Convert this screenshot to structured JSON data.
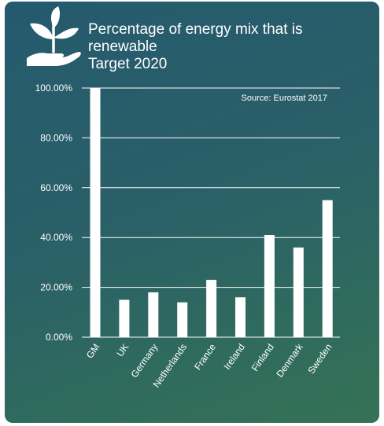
{
  "header": {
    "logo_icon": "plant-in-hand-icon"
  },
  "chart_data": {
    "type": "bar",
    "title_lines": [
      "Percentage of energy mix that is",
      "renewable",
      "Target 2020"
    ],
    "source": "Source: Eurostat 2017",
    "categories": [
      "GM",
      "UK",
      "Germany",
      "Netherlands",
      "France",
      "Ireland",
      "Finland",
      "Denmark",
      "Sweden"
    ],
    "values": [
      100,
      15,
      18,
      14,
      23,
      16,
      41,
      36,
      55
    ],
    "ylim": [
      0,
      100
    ],
    "yticks": [
      0,
      20,
      40,
      60,
      80,
      100
    ],
    "ytick_labels": [
      "0.00%",
      "20.00%",
      "40.00%",
      "60.00%",
      "80.00%",
      "100.00%"
    ],
    "xlabel": "",
    "ylabel": "",
    "grid": true,
    "colors": {
      "bar": "#ffffff",
      "grid": "#ffffff",
      "background_top": "#245a6e",
      "background_bottom": "#357255"
    }
  }
}
